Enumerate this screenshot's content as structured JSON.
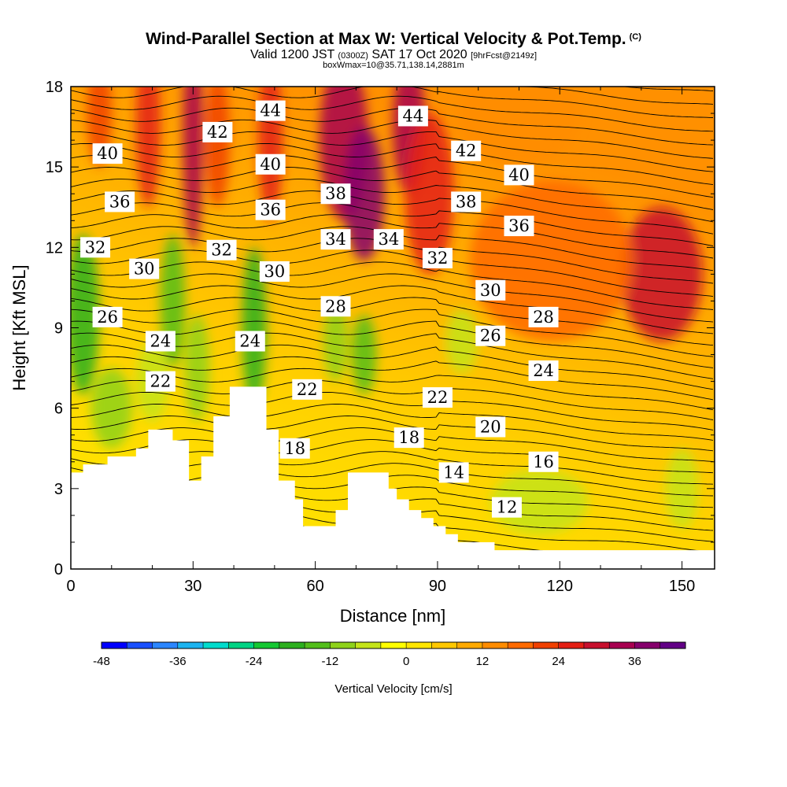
{
  "header": {
    "title": "Wind-Parallel Section at Max W: Vertical Velocity & Pot.Temp.",
    "copyright": "(C)",
    "valid_prefix": "Valid 1200 JST",
    "valid_utc": "(0300Z)",
    "valid_date": "SAT 17 Oct 2020",
    "forecast": "[9hrFcst@2149z]",
    "box_info": "boxWmax=10@35.71,138.14,2881m"
  },
  "chart_data": {
    "type": "heatmap",
    "xlabel": "Distance [nm]",
    "ylabel": "Height [Kft MSL]",
    "xlim": [
      0,
      158
    ],
    "ylim": [
      0,
      18
    ],
    "x_ticks": [
      0,
      30,
      60,
      90,
      120,
      150
    ],
    "y_ticks": [
      0,
      3,
      6,
      9,
      12,
      15,
      18
    ],
    "terrain_steps": [
      [
        0,
        3.6
      ],
      [
        3,
        3.9
      ],
      [
        9,
        4.2
      ],
      [
        16,
        4.5
      ],
      [
        19,
        5.2
      ],
      [
        25,
        4.8
      ],
      [
        29,
        3.3
      ],
      [
        32,
        4.2
      ],
      [
        35,
        5.7
      ],
      [
        39,
        6.8
      ],
      [
        48,
        5.2
      ],
      [
        51,
        3.3
      ],
      [
        55,
        2.6
      ],
      [
        57,
        1.6
      ],
      [
        65,
        2.2
      ],
      [
        68,
        3.6
      ],
      [
        78,
        3.0
      ],
      [
        80,
        2.6
      ],
      [
        83,
        2.2
      ],
      [
        86,
        1.9
      ],
      [
        89,
        1.6
      ],
      [
        92,
        1.3
      ],
      [
        95,
        1.0
      ],
      [
        104,
        0.7
      ],
      [
        158,
        0.6
      ]
    ],
    "velocity_field": [
      {
        "x": 3,
        "y": 9.5,
        "w": -18,
        "rx": 4,
        "ry": 3
      },
      {
        "x": 10,
        "y": 6,
        "w": -10,
        "rx": 5,
        "ry": 1.5
      },
      {
        "x": 7,
        "y": 17,
        "w": 20,
        "rx": 3,
        "ry": 2
      },
      {
        "x": 19,
        "y": 16.5,
        "w": 24,
        "rx": 3,
        "ry": 3
      },
      {
        "x": 25,
        "y": 10,
        "w": -15,
        "rx": 3,
        "ry": 2.5
      },
      {
        "x": 20,
        "y": 7,
        "w": -8,
        "rx": 4,
        "ry": 1.5
      },
      {
        "x": 30,
        "y": 16,
        "w": 34,
        "rx": 2.5,
        "ry": 4
      },
      {
        "x": 31,
        "y": 7.5,
        "w": -10,
        "rx": 3,
        "ry": 2
      },
      {
        "x": 36,
        "y": 16,
        "w": 22,
        "rx": 3,
        "ry": 2.5
      },
      {
        "x": 45,
        "y": 9,
        "w": -20,
        "rx": 3,
        "ry": 3
      },
      {
        "x": 49,
        "y": 16,
        "w": 26,
        "rx": 3,
        "ry": 3
      },
      {
        "x": 67,
        "y": 16,
        "w": 32,
        "rx": 6,
        "ry": 3
      },
      {
        "x": 72,
        "y": 14,
        "w": 38,
        "rx": 5,
        "ry": 2.5
      },
      {
        "x": 72,
        "y": 8,
        "w": -16,
        "rx": 3,
        "ry": 1.5
      },
      {
        "x": 65,
        "y": 8.5,
        "w": -10,
        "rx": 3,
        "ry": 1.5
      },
      {
        "x": 83,
        "y": 16.5,
        "w": 32,
        "rx": 4,
        "ry": 2.5
      },
      {
        "x": 88,
        "y": 14,
        "w": 26,
        "rx": 6,
        "ry": 3
      },
      {
        "x": 110,
        "y": 17,
        "w": 12,
        "rx": 15,
        "ry": 2
      },
      {
        "x": 145,
        "y": 11,
        "w": 30,
        "rx": 10,
        "ry": 2.5
      },
      {
        "x": 118,
        "y": 11.5,
        "w": 18,
        "rx": 20,
        "ry": 3
      },
      {
        "x": 115,
        "y": 2.5,
        "w": -6,
        "rx": 12,
        "ry": 1.2
      },
      {
        "x": 150,
        "y": 3,
        "w": -8,
        "rx": 4,
        "ry": 1.5
      },
      {
        "x": 96,
        "y": 8.5,
        "w": -6,
        "rx": 4,
        "ry": 1.2
      }
    ],
    "theta_levels": [
      12,
      14,
      16,
      18,
      20,
      22,
      24,
      26,
      28,
      30,
      32,
      34,
      36,
      38,
      40,
      42,
      44
    ],
    "contour_labels": [
      {
        "text": "40",
        "x": 9,
        "y": 15.5
      },
      {
        "text": "36",
        "x": 12,
        "y": 13.7
      },
      {
        "text": "32",
        "x": 6,
        "y": 12.0
      },
      {
        "text": "30",
        "x": 18,
        "y": 11.2
      },
      {
        "text": "26",
        "x": 9,
        "y": 9.4
      },
      {
        "text": "24",
        "x": 22,
        "y": 8.5
      },
      {
        "text": "22",
        "x": 22,
        "y": 7.0
      },
      {
        "text": "42",
        "x": 36,
        "y": 16.3
      },
      {
        "text": "44",
        "x": 49,
        "y": 17.1
      },
      {
        "text": "40",
        "x": 49,
        "y": 15.1
      },
      {
        "text": "36",
        "x": 49,
        "y": 13.4
      },
      {
        "text": "32",
        "x": 37,
        "y": 11.9
      },
      {
        "text": "30",
        "x": 50,
        "y": 11.1
      },
      {
        "text": "24",
        "x": 44,
        "y": 8.5
      },
      {
        "text": "22",
        "x": 58,
        "y": 6.7
      },
      {
        "text": "18",
        "x": 55,
        "y": 4.5
      },
      {
        "text": "38",
        "x": 65,
        "y": 14.0
      },
      {
        "text": "34",
        "x": 65,
        "y": 12.3
      },
      {
        "text": "28",
        "x": 65,
        "y": 9.8
      },
      {
        "text": "34",
        "x": 78,
        "y": 12.3
      },
      {
        "text": "44",
        "x": 84,
        "y": 16.9
      },
      {
        "text": "42",
        "x": 97,
        "y": 15.6
      },
      {
        "text": "38",
        "x": 97,
        "y": 13.7
      },
      {
        "text": "32",
        "x": 90,
        "y": 11.6
      },
      {
        "text": "22",
        "x": 90,
        "y": 6.4
      },
      {
        "text": "18",
        "x": 83,
        "y": 4.9
      },
      {
        "text": "14",
        "x": 94,
        "y": 3.6
      },
      {
        "text": "40",
        "x": 110,
        "y": 14.7
      },
      {
        "text": "36",
        "x": 110,
        "y": 12.8
      },
      {
        "text": "30",
        "x": 103,
        "y": 10.4
      },
      {
        "text": "26",
        "x": 103,
        "y": 8.7
      },
      {
        "text": "28",
        "x": 116,
        "y": 9.4
      },
      {
        "text": "24",
        "x": 116,
        "y": 7.4
      },
      {
        "text": "20",
        "x": 103,
        "y": 5.3
      },
      {
        "text": "16",
        "x": 116,
        "y": 4.0
      },
      {
        "text": "12",
        "x": 107,
        "y": 2.3
      }
    ]
  },
  "colorbar": {
    "label": "Vertical Velocity [cm/s]",
    "min": -48,
    "max": 40,
    "step": 4,
    "tick_labels": [
      "-48",
      "-36",
      "-24",
      "-12",
      "0",
      "12",
      "24",
      "36"
    ],
    "tick_values": [
      -48,
      -36,
      -24,
      -12,
      0,
      12,
      24,
      36
    ],
    "colors": [
      "#0000ff",
      "#1a50ff",
      "#2b86ff",
      "#1cb4f0",
      "#00dccc",
      "#00d484",
      "#14c832",
      "#2cb01e",
      "#52be1a",
      "#8ed21a",
      "#c4e418",
      "#ffff00",
      "#ffe600",
      "#ffc800",
      "#ffaa00",
      "#ff8c00",
      "#ff6a00",
      "#f04000",
      "#e41f14",
      "#c8102e",
      "#a80050",
      "#86006c",
      "#620086"
    ]
  }
}
